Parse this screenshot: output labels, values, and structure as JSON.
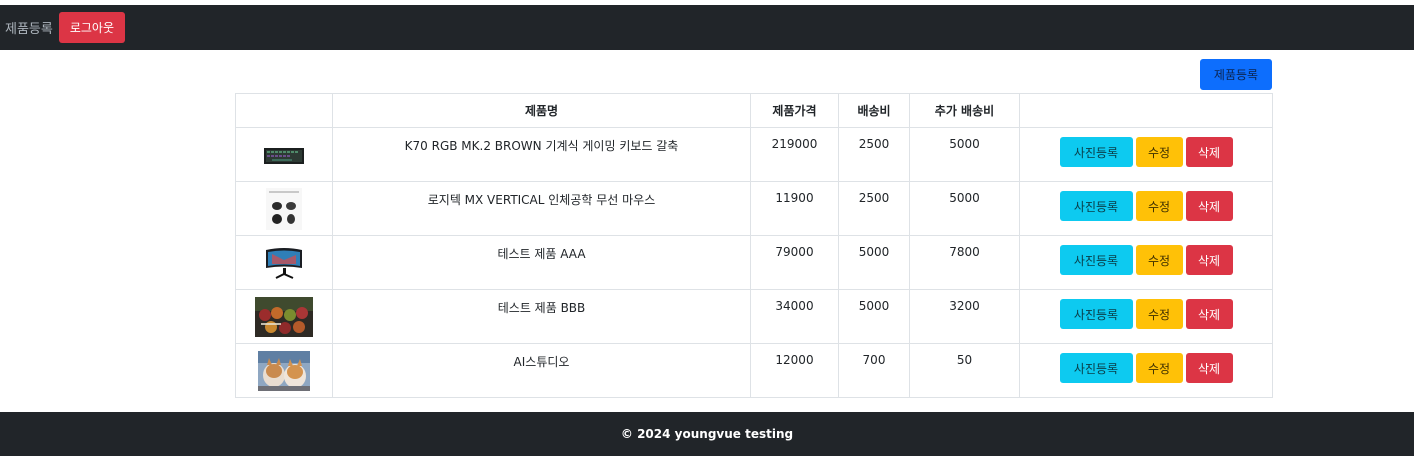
{
  "navbar": {
    "register_link": "제품등록",
    "logout_label": "로그아웃"
  },
  "register_button": "제품등록",
  "table": {
    "headers": [
      "",
      "제품명",
      "제품가격",
      "배송비",
      "추가 배송비",
      ""
    ],
    "rows": [
      {
        "thumb": "keyboard-image",
        "name": "K70 RGB MK.2 BROWN 기계식 게이밍 키보드 갈축",
        "price": "219000",
        "shipping": "2500",
        "extra": "5000"
      },
      {
        "thumb": "mouse-image",
        "name": "로지텍 MX VERTICAL 인체공학 무선 마우스",
        "price": "11900",
        "shipping": "2500",
        "extra": "5000"
      },
      {
        "thumb": "monitor-image",
        "name": "테스트 제품 AAA",
        "price": "79000",
        "shipping": "5000",
        "extra": "7800"
      },
      {
        "thumb": "fruit-image",
        "name": "테스트 제품 BBB",
        "price": "34000",
        "shipping": "5000",
        "extra": "3200"
      },
      {
        "thumb": "dogs-image",
        "name": "AI스튜디오",
        "price": "12000",
        "shipping": "700",
        "extra": "50"
      }
    ],
    "actions": {
      "photo": "사진등록",
      "edit": "수정",
      "delete": "삭제"
    }
  },
  "footer": {
    "text": "© 2024 youngvue testing"
  },
  "colors": {
    "navbar_bg": "#212529",
    "primary": "#0d6efd",
    "info": "#0dcaf0",
    "warning": "#ffc107",
    "danger": "#dc3545"
  }
}
